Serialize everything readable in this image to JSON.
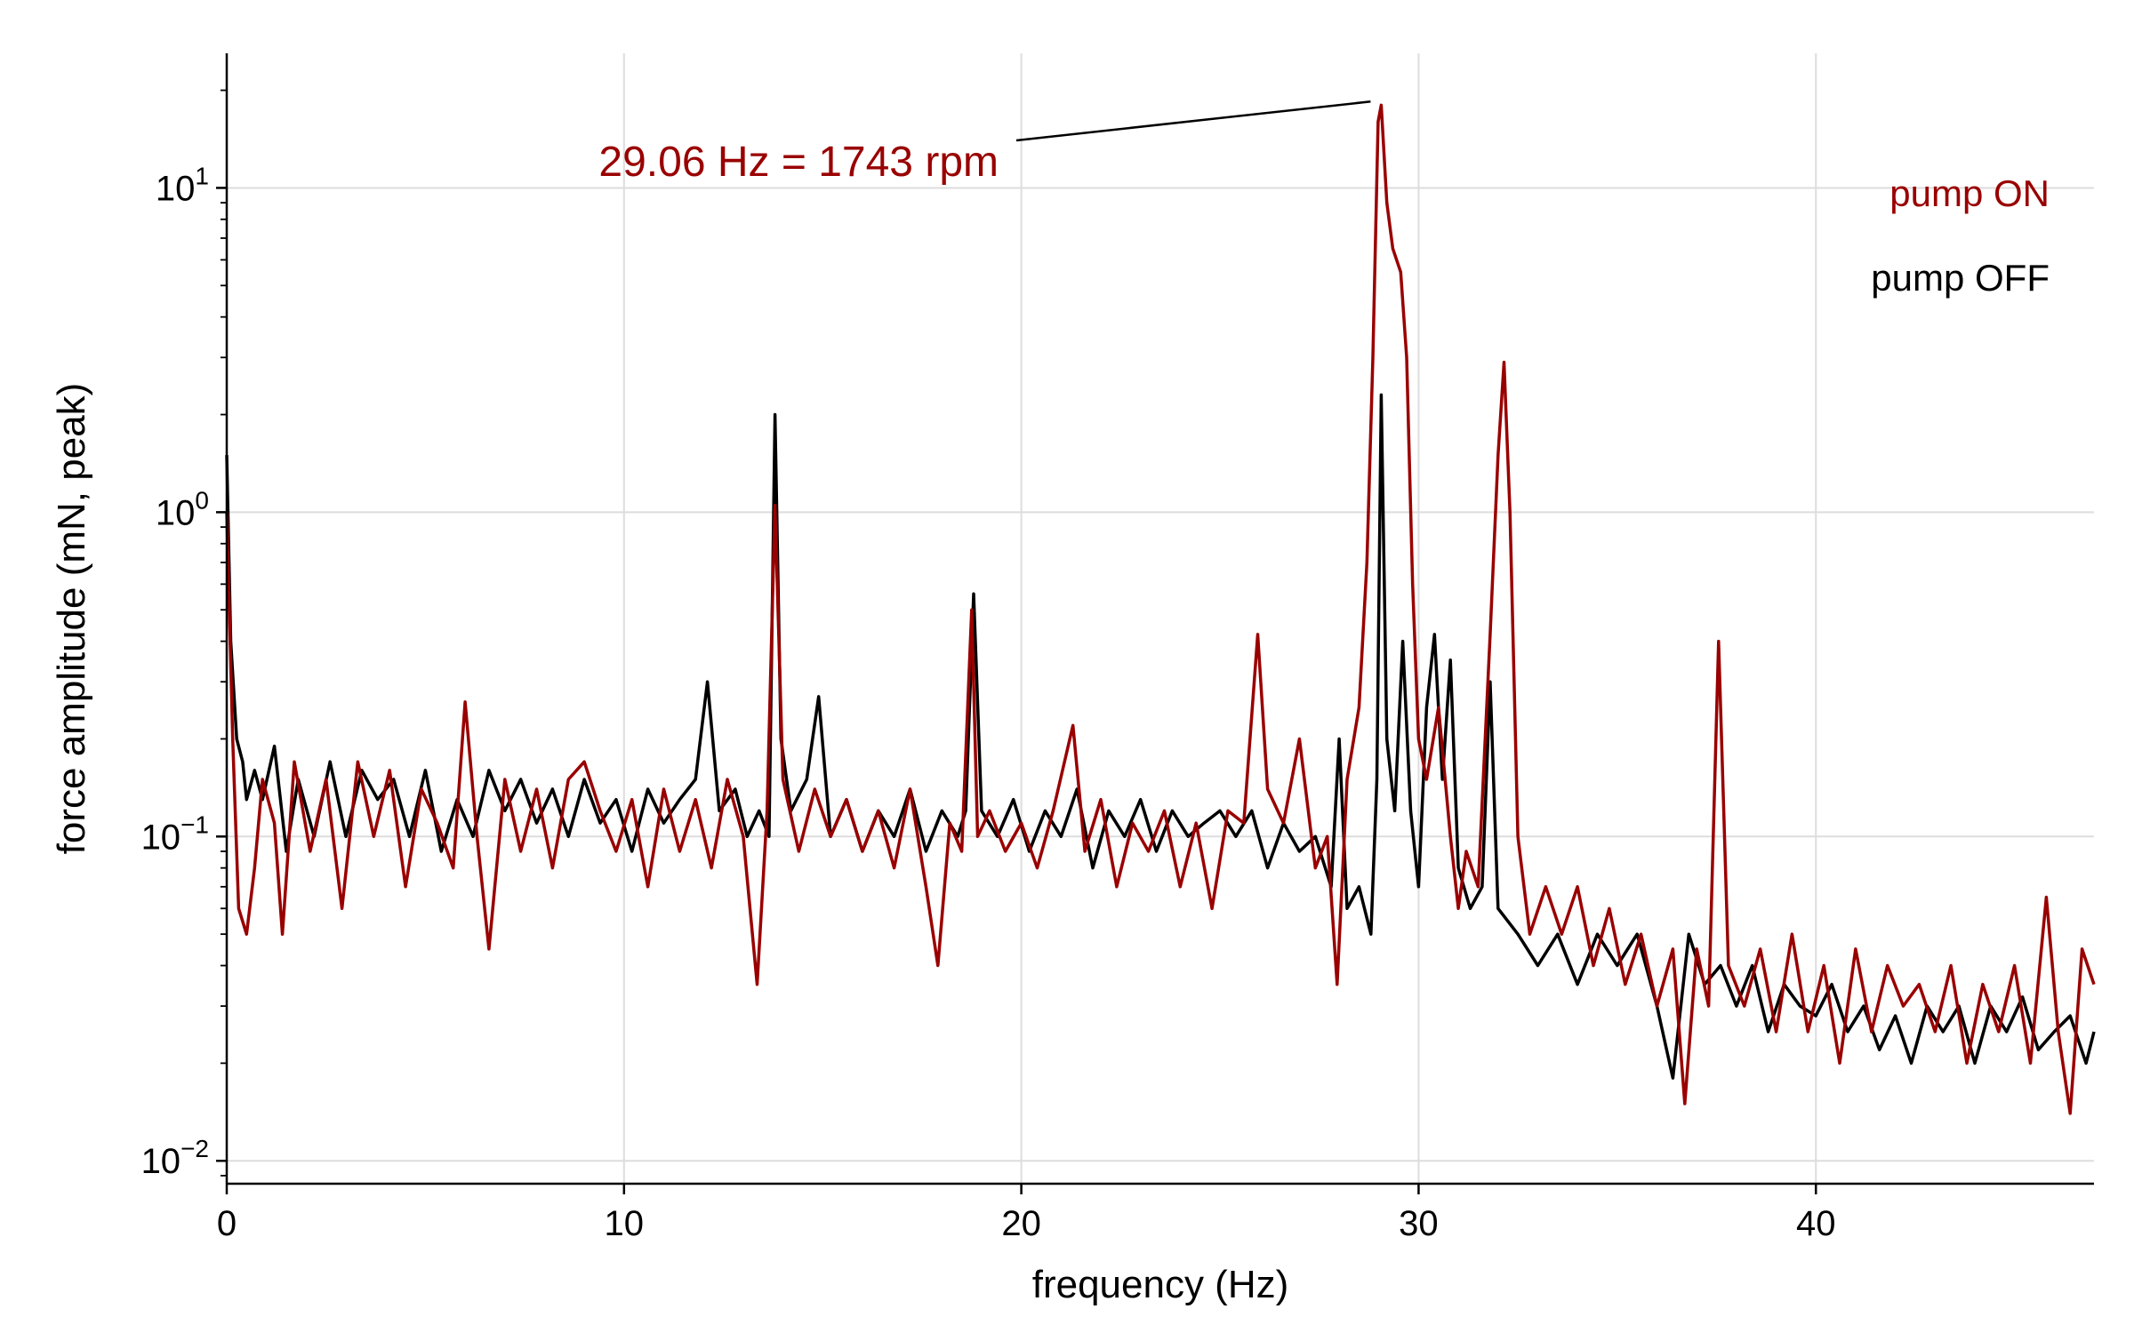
{
  "chart_data": {
    "type": "line",
    "title": "",
    "xlabel": "frequency (Hz)",
    "ylabel": "force amplitude (mN, peak)",
    "xlim": [
      0,
      47
    ],
    "ylim": [
      0.0085,
      26
    ],
    "yscale": "log",
    "grid": true,
    "legend_placement": "top-right",
    "x_ticks": [
      {
        "value": 0,
        "label": "0"
      },
      {
        "value": 10,
        "label": "10"
      },
      {
        "value": 20,
        "label": "20"
      },
      {
        "value": 30,
        "label": "30"
      },
      {
        "value": 40,
        "label": "40"
      }
    ],
    "y_ticks": [
      {
        "value": 0.01,
        "base": "10",
        "exp": "−2"
      },
      {
        "value": 0.1,
        "base": "10",
        "exp": "−1"
      },
      {
        "value": 1,
        "base": "10",
        "exp": "0"
      },
      {
        "value": 10,
        "base": "10",
        "exp": "1"
      }
    ],
    "series": [
      {
        "name": "pump OFF",
        "color": "#000000",
        "points": [
          [
            0.0,
            1.5
          ],
          [
            0.1,
            0.4
          ],
          [
            0.25,
            0.2
          ],
          [
            0.4,
            0.17
          ],
          [
            0.5,
            0.13
          ],
          [
            0.7,
            0.16
          ],
          [
            0.9,
            0.13
          ],
          [
            1.2,
            0.19
          ],
          [
            1.5,
            0.09
          ],
          [
            1.8,
            0.15
          ],
          [
            2.2,
            0.1
          ],
          [
            2.6,
            0.17
          ],
          [
            3.0,
            0.1
          ],
          [
            3.4,
            0.16
          ],
          [
            3.8,
            0.13
          ],
          [
            4.2,
            0.15
          ],
          [
            4.6,
            0.1
          ],
          [
            5.0,
            0.16
          ],
          [
            5.4,
            0.09
          ],
          [
            5.8,
            0.13
          ],
          [
            6.2,
            0.1
          ],
          [
            6.6,
            0.16
          ],
          [
            7.0,
            0.12
          ],
          [
            7.4,
            0.15
          ],
          [
            7.8,
            0.11
          ],
          [
            8.2,
            0.14
          ],
          [
            8.6,
            0.1
          ],
          [
            9.0,
            0.15
          ],
          [
            9.4,
            0.11
          ],
          [
            9.8,
            0.13
          ],
          [
            10.2,
            0.09
          ],
          [
            10.6,
            0.14
          ],
          [
            11.0,
            0.11
          ],
          [
            11.4,
            0.13
          ],
          [
            11.8,
            0.15
          ],
          [
            12.1,
            0.3
          ],
          [
            12.4,
            0.12
          ],
          [
            12.8,
            0.14
          ],
          [
            13.1,
            0.1
          ],
          [
            13.4,
            0.12
          ],
          [
            13.65,
            0.1
          ],
          [
            13.8,
            2.0
          ],
          [
            13.95,
            0.2
          ],
          [
            14.2,
            0.12
          ],
          [
            14.6,
            0.15
          ],
          [
            14.9,
            0.27
          ],
          [
            15.2,
            0.1
          ],
          [
            15.6,
            0.13
          ],
          [
            16.0,
            0.09
          ],
          [
            16.4,
            0.12
          ],
          [
            16.8,
            0.1
          ],
          [
            17.2,
            0.14
          ],
          [
            17.6,
            0.09
          ],
          [
            18.0,
            0.12
          ],
          [
            18.4,
            0.1
          ],
          [
            18.6,
            0.12
          ],
          [
            18.8,
            0.56
          ],
          [
            19.0,
            0.12
          ],
          [
            19.4,
            0.1
          ],
          [
            19.8,
            0.13
          ],
          [
            20.2,
            0.09
          ],
          [
            20.6,
            0.12
          ],
          [
            21.0,
            0.1
          ],
          [
            21.4,
            0.14
          ],
          [
            21.8,
            0.08
          ],
          [
            22.2,
            0.12
          ],
          [
            22.6,
            0.1
          ],
          [
            23.0,
            0.13
          ],
          [
            23.4,
            0.09
          ],
          [
            23.8,
            0.12
          ],
          [
            24.2,
            0.1
          ],
          [
            24.6,
            0.11
          ],
          [
            25.0,
            0.12
          ],
          [
            25.4,
            0.1
          ],
          [
            25.8,
            0.12
          ],
          [
            26.2,
            0.08
          ],
          [
            26.6,
            0.11
          ],
          [
            27.0,
            0.09
          ],
          [
            27.4,
            0.1
          ],
          [
            27.8,
            0.07
          ],
          [
            28.0,
            0.2
          ],
          [
            28.2,
            0.06
          ],
          [
            28.5,
            0.07
          ],
          [
            28.8,
            0.05
          ],
          [
            28.95,
            0.15
          ],
          [
            29.06,
            2.3
          ],
          [
            29.2,
            0.2
          ],
          [
            29.4,
            0.12
          ],
          [
            29.6,
            0.4
          ],
          [
            29.8,
            0.12
          ],
          [
            30.0,
            0.07
          ],
          [
            30.2,
            0.25
          ],
          [
            30.4,
            0.42
          ],
          [
            30.6,
            0.15
          ],
          [
            30.8,
            0.35
          ],
          [
            31.0,
            0.08
          ],
          [
            31.3,
            0.06
          ],
          [
            31.6,
            0.07
          ],
          [
            31.8,
            0.3
          ],
          [
            32.0,
            0.06
          ],
          [
            32.5,
            0.05
          ],
          [
            33.0,
            0.04
          ],
          [
            33.5,
            0.05
          ],
          [
            34.0,
            0.035
          ],
          [
            34.5,
            0.05
          ],
          [
            35.0,
            0.04
          ],
          [
            35.5,
            0.05
          ],
          [
            36.0,
            0.03
          ],
          [
            36.4,
            0.018
          ],
          [
            36.8,
            0.05
          ],
          [
            37.2,
            0.035
          ],
          [
            37.6,
            0.04
          ],
          [
            38.0,
            0.03
          ],
          [
            38.4,
            0.04
          ],
          [
            38.8,
            0.025
          ],
          [
            39.2,
            0.035
          ],
          [
            39.6,
            0.03
          ],
          [
            40.0,
            0.028
          ],
          [
            40.4,
            0.035
          ],
          [
            40.8,
            0.025
          ],
          [
            41.2,
            0.03
          ],
          [
            41.6,
            0.022
          ],
          [
            42.0,
            0.028
          ],
          [
            42.4,
            0.02
          ],
          [
            42.8,
            0.03
          ],
          [
            43.2,
            0.025
          ],
          [
            43.6,
            0.03
          ],
          [
            44.0,
            0.02
          ],
          [
            44.4,
            0.03
          ],
          [
            44.8,
            0.025
          ],
          [
            45.2,
            0.032
          ],
          [
            45.6,
            0.022
          ],
          [
            46.0,
            0.025
          ],
          [
            46.4,
            0.028
          ],
          [
            46.8,
            0.02
          ],
          [
            47.0,
            0.025
          ]
        ]
      },
      {
        "name": "pump ON",
        "color": "#990000",
        "points": [
          [
            0.0,
            1.0
          ],
          [
            0.15,
            0.2
          ],
          [
            0.3,
            0.06
          ],
          [
            0.5,
            0.05
          ],
          [
            0.7,
            0.08
          ],
          [
            0.9,
            0.15
          ],
          [
            1.2,
            0.11
          ],
          [
            1.4,
            0.05
          ],
          [
            1.7,
            0.17
          ],
          [
            2.1,
            0.09
          ],
          [
            2.5,
            0.15
          ],
          [
            2.9,
            0.06
          ],
          [
            3.3,
            0.17
          ],
          [
            3.7,
            0.1
          ],
          [
            4.1,
            0.16
          ],
          [
            4.5,
            0.07
          ],
          [
            4.9,
            0.14
          ],
          [
            5.3,
            0.11
          ],
          [
            5.7,
            0.08
          ],
          [
            6.0,
            0.26
          ],
          [
            6.3,
            0.1
          ],
          [
            6.6,
            0.045
          ],
          [
            7.0,
            0.15
          ],
          [
            7.4,
            0.09
          ],
          [
            7.8,
            0.14
          ],
          [
            8.2,
            0.08
          ],
          [
            8.6,
            0.15
          ],
          [
            9.0,
            0.17
          ],
          [
            9.4,
            0.12
          ],
          [
            9.8,
            0.09
          ],
          [
            10.2,
            0.13
          ],
          [
            10.6,
            0.07
          ],
          [
            11.0,
            0.14
          ],
          [
            11.4,
            0.09
          ],
          [
            11.8,
            0.13
          ],
          [
            12.2,
            0.08
          ],
          [
            12.6,
            0.15
          ],
          [
            13.0,
            0.1
          ],
          [
            13.35,
            0.035
          ],
          [
            13.6,
            0.12
          ],
          [
            13.8,
            1.05
          ],
          [
            14.0,
            0.15
          ],
          [
            14.4,
            0.09
          ],
          [
            14.8,
            0.14
          ],
          [
            15.2,
            0.1
          ],
          [
            15.6,
            0.13
          ],
          [
            16.0,
            0.09
          ],
          [
            16.4,
            0.12
          ],
          [
            16.8,
            0.08
          ],
          [
            17.2,
            0.14
          ],
          [
            17.6,
            0.07
          ],
          [
            17.9,
            0.04
          ],
          [
            18.2,
            0.11
          ],
          [
            18.5,
            0.09
          ],
          [
            18.75,
            0.5
          ],
          [
            18.9,
            0.1
          ],
          [
            19.2,
            0.12
          ],
          [
            19.6,
            0.09
          ],
          [
            20.0,
            0.11
          ],
          [
            20.4,
            0.08
          ],
          [
            20.8,
            0.12
          ],
          [
            21.3,
            0.22
          ],
          [
            21.6,
            0.09
          ],
          [
            22.0,
            0.13
          ],
          [
            22.4,
            0.07
          ],
          [
            22.8,
            0.11
          ],
          [
            23.2,
            0.09
          ],
          [
            23.6,
            0.12
          ],
          [
            24.0,
            0.07
          ],
          [
            24.4,
            0.11
          ],
          [
            24.8,
            0.06
          ],
          [
            25.2,
            0.12
          ],
          [
            25.6,
            0.11
          ],
          [
            25.95,
            0.42
          ],
          [
            26.2,
            0.14
          ],
          [
            26.6,
            0.11
          ],
          [
            27.0,
            0.2
          ],
          [
            27.4,
            0.08
          ],
          [
            27.7,
            0.1
          ],
          [
            27.95,
            0.035
          ],
          [
            28.2,
            0.15
          ],
          [
            28.5,
            0.25
          ],
          [
            28.7,
            0.7
          ],
          [
            28.85,
            3.0
          ],
          [
            28.98,
            16.0
          ],
          [
            29.06,
            18.0
          ],
          [
            29.2,
            9.0
          ],
          [
            29.35,
            6.5
          ],
          [
            29.55,
            5.5
          ],
          [
            29.7,
            3.0
          ],
          [
            29.85,
            0.6
          ],
          [
            30.0,
            0.2
          ],
          [
            30.2,
            0.15
          ],
          [
            30.5,
            0.25
          ],
          [
            30.8,
            0.1
          ],
          [
            31.0,
            0.06
          ],
          [
            31.2,
            0.09
          ],
          [
            31.5,
            0.07
          ],
          [
            31.8,
            0.42
          ],
          [
            32.0,
            1.5
          ],
          [
            32.15,
            2.9
          ],
          [
            32.3,
            1.0
          ],
          [
            32.5,
            0.1
          ],
          [
            32.8,
            0.05
          ],
          [
            33.2,
            0.07
          ],
          [
            33.6,
            0.05
          ],
          [
            34.0,
            0.07
          ],
          [
            34.4,
            0.04
          ],
          [
            34.8,
            0.06
          ],
          [
            35.2,
            0.035
          ],
          [
            35.6,
            0.05
          ],
          [
            36.0,
            0.03
          ],
          [
            36.4,
            0.045
          ],
          [
            36.7,
            0.015
          ],
          [
            37.0,
            0.045
          ],
          [
            37.3,
            0.03
          ],
          [
            37.55,
            0.4
          ],
          [
            37.8,
            0.04
          ],
          [
            38.2,
            0.03
          ],
          [
            38.6,
            0.045
          ],
          [
            39.0,
            0.025
          ],
          [
            39.4,
            0.05
          ],
          [
            39.8,
            0.025
          ],
          [
            40.2,
            0.04
          ],
          [
            40.6,
            0.02
          ],
          [
            41.0,
            0.045
          ],
          [
            41.4,
            0.025
          ],
          [
            41.8,
            0.04
          ],
          [
            42.2,
            0.03
          ],
          [
            42.6,
            0.035
          ],
          [
            43.0,
            0.025
          ],
          [
            43.4,
            0.04
          ],
          [
            43.8,
            0.02
          ],
          [
            44.2,
            0.035
          ],
          [
            44.6,
            0.025
          ],
          [
            45.0,
            0.04
          ],
          [
            45.4,
            0.02
          ],
          [
            45.8,
            0.065
          ],
          [
            46.1,
            0.025
          ],
          [
            46.4,
            0.014
          ],
          [
            46.7,
            0.045
          ],
          [
            47.0,
            0.035
          ]
        ]
      }
    ],
    "annotations": [
      {
        "text": "29.06 Hz = 1743 rpm",
        "x": 29.06,
        "y": 18.0,
        "color": "#990000"
      }
    ]
  }
}
